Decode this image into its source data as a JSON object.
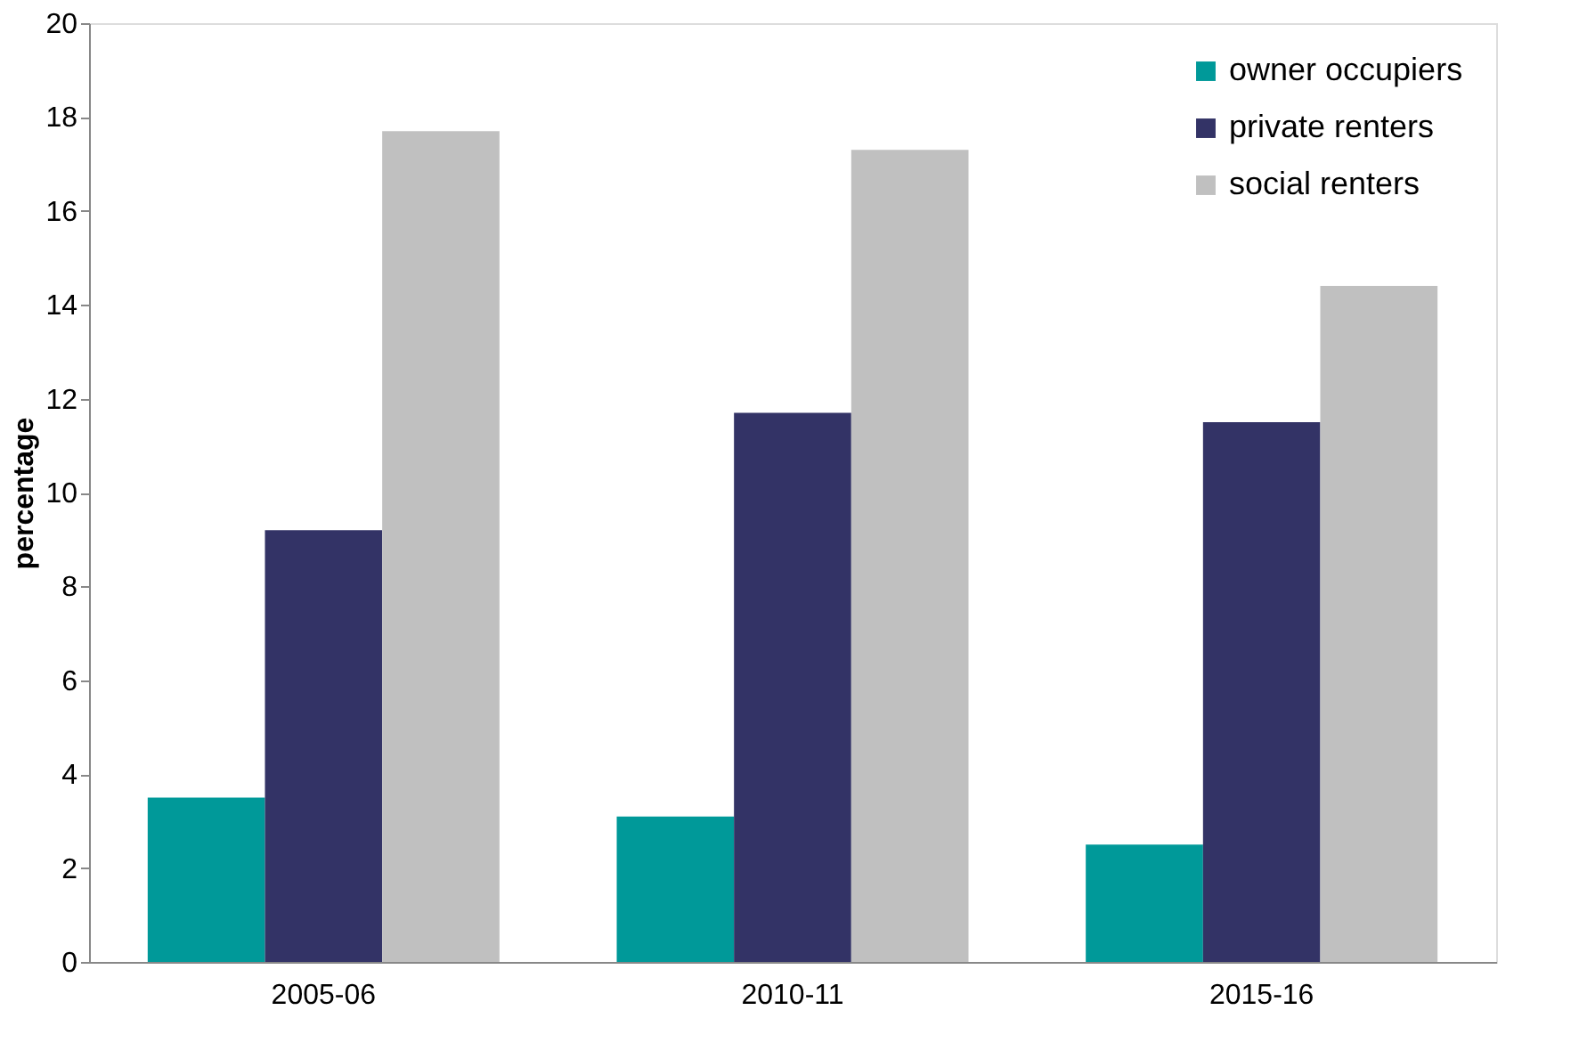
{
  "chart_data": {
    "type": "bar",
    "ylabel": "percentage",
    "categories": [
      "2005-06",
      "2010-11",
      "2015-16"
    ],
    "series": [
      {
        "name": "owner occupiers",
        "color": "#009999",
        "values": [
          3.5,
          3.1,
          2.5
        ]
      },
      {
        "name": "private renters",
        "color": "#333366",
        "values": [
          9.2,
          11.7,
          11.5
        ]
      },
      {
        "name": "social renters",
        "color": "#c0c0c0",
        "values": [
          17.7,
          17.3,
          14.4
        ]
      }
    ],
    "ylim": [
      0,
      20
    ],
    "yticks": [
      0,
      2,
      4,
      6,
      8,
      10,
      12,
      14,
      16,
      18,
      20
    ],
    "grid": false,
    "legend": "top right"
  }
}
